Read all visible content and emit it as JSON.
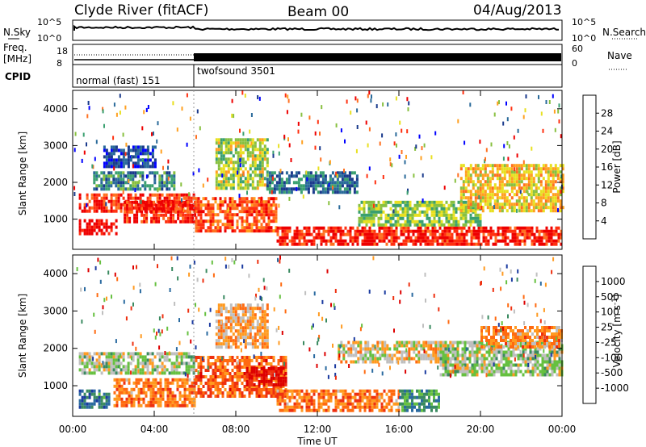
{
  "header": {
    "station": "Clyde River (fitACF)",
    "beam": "Beam 00",
    "date": "04/Aug/2013"
  },
  "strip": {
    "nsky_label": "N.Sky",
    "nsky_ticks": [
      "10^5",
      "10^0"
    ],
    "nsearch_label": "N.Search",
    "nsearch_ticks": [
      "10^5",
      "10^0"
    ],
    "freq_label_1": "Freq.",
    "freq_label_2": "[MHz]",
    "freq_ticks": [
      "18",
      "8"
    ],
    "nave_label": "Nave",
    "nave_ticks": [
      "60",
      "0"
    ],
    "cpid_label": "CPID",
    "cpid_modes": [
      {
        "name": "normal (fast) 151",
        "start_hour": 0,
        "end_hour": 6
      },
      {
        "name": "twofsound 3501",
        "start_hour": 6,
        "end_hour": 24
      }
    ]
  },
  "chart_data": [
    {
      "type": "heatmap",
      "name": "power",
      "ylabel": "Slant Range [km]",
      "xlabel": "Time UT",
      "x_ticks": [
        "00:00",
        "04:00",
        "08:00",
        "12:00",
        "16:00",
        "20:00",
        "00:00"
      ],
      "xlim_hours": [
        0,
        24
      ],
      "y_ticks": [
        1000,
        2000,
        3000,
        4000
      ],
      "ylim": [
        180,
        4500
      ],
      "colorbar": {
        "label": "Power [dB]",
        "ticks": [
          "28",
          "24",
          "20",
          "16",
          "12",
          "8",
          "4"
        ],
        "colors": [
          "#0000ff",
          "#1a3a8c",
          "#2a6a9a",
          "#3aa070",
          "#88c040",
          "#e8e020",
          "#ffa020",
          "#ff7020",
          "#ff3010",
          "#ee0000"
        ]
      },
      "regions": [
        {
          "t0": 0.3,
          "t1": 6.0,
          "r0": 1200,
          "r1": 1700,
          "level": 0.85
        },
        {
          "t0": 0.3,
          "t1": 2.2,
          "r0": 600,
          "r1": 1000,
          "level": 0.95
        },
        {
          "t0": 2.5,
          "t1": 6.0,
          "r0": 900,
          "r1": 1500,
          "level": 0.9
        },
        {
          "t0": 1.0,
          "t1": 5.0,
          "r0": 1800,
          "r1": 2300,
          "level": 0.3
        },
        {
          "t0": 1.5,
          "t1": 4.0,
          "r0": 2400,
          "r1": 3000,
          "level": 0.15
        },
        {
          "t0": 6.0,
          "t1": 10.0,
          "r0": 700,
          "r1": 1600,
          "level": 0.8
        },
        {
          "t0": 7.0,
          "t1": 9.5,
          "r0": 1800,
          "r1": 3200,
          "level": 0.5
        },
        {
          "t0": 9.5,
          "t1": 14.0,
          "r0": 1700,
          "r1": 2300,
          "level": 0.25
        },
        {
          "t0": 10.0,
          "t1": 24.0,
          "r0": 300,
          "r1": 800,
          "level": 0.9
        },
        {
          "t0": 14.0,
          "t1": 20.0,
          "r0": 800,
          "r1": 1500,
          "level": 0.45
        },
        {
          "t0": 19.0,
          "t1": 24.0,
          "r0": 1200,
          "r1": 2500,
          "level": 0.6
        }
      ]
    },
    {
      "type": "heatmap",
      "name": "velocity",
      "ylabel": "Slant Range [km]",
      "xlabel": "Time UT",
      "x_ticks": [
        "00:00",
        "04:00",
        "08:00",
        "12:00",
        "16:00",
        "20:00",
        "00:00"
      ],
      "xlim_hours": [
        0,
        24
      ],
      "y_ticks": [
        1000,
        2000,
        3000,
        4000
      ],
      "ylim": [
        180,
        4500
      ],
      "colorbar": {
        "label": "Velocity [m s^-1]",
        "ticks": [
          "1000",
          "500",
          "100",
          "25",
          "-25",
          "-100",
          "-500",
          "-1000"
        ],
        "colors": [
          "#1a3aa0",
          "#2a6aa0",
          "#3a8a60",
          "#66c040",
          "#bfbfbf",
          "#ff9a20",
          "#ff6a10",
          "#ee3010",
          "#dd0000"
        ]
      },
      "regions": [
        {
          "t0": 0.3,
          "t1": 6.0,
          "r0": 1300,
          "r1": 1900,
          "level": 0.45
        },
        {
          "t0": 0.3,
          "t1": 1.8,
          "r0": 450,
          "r1": 900,
          "level": 0.2
        },
        {
          "t0": 2.0,
          "t1": 6.0,
          "r0": 500,
          "r1": 1200,
          "level": 0.7
        },
        {
          "t0": 6.0,
          "t1": 10.5,
          "r0": 700,
          "r1": 1800,
          "level": 0.75
        },
        {
          "t0": 8.5,
          "t1": 10.5,
          "r0": 1000,
          "r1": 1500,
          "level": 0.95
        },
        {
          "t0": 7.0,
          "t1": 9.5,
          "r0": 2000,
          "r1": 3200,
          "level": 0.6
        },
        {
          "t0": 10.0,
          "t1": 16.0,
          "r0": 300,
          "r1": 900,
          "level": 0.7
        },
        {
          "t0": 16.0,
          "t1": 18.0,
          "r0": 300,
          "r1": 900,
          "level": 0.3
        },
        {
          "t0": 13.0,
          "t1": 18.5,
          "r0": 1600,
          "r1": 2200,
          "level": 0.55
        },
        {
          "t0": 18.0,
          "t1": 24.0,
          "r0": 1300,
          "r1": 2200,
          "level": 0.45
        },
        {
          "t0": 20.0,
          "t1": 24.0,
          "r0": 2000,
          "r1": 2600,
          "level": 0.65
        }
      ]
    }
  ]
}
